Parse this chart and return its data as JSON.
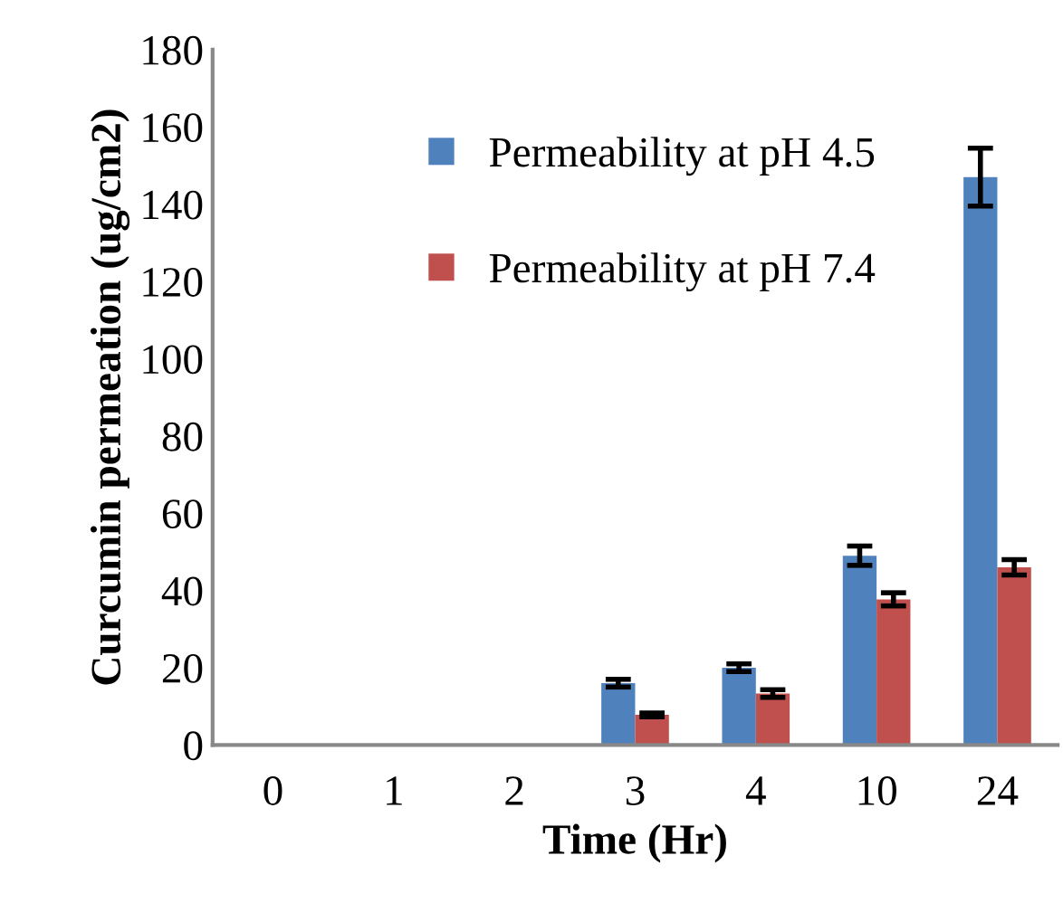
{
  "chart_data": {
    "type": "bar",
    "xlabel": "Time (Hr)",
    "ylabel": "Curcumin permeation (ug/cm2)",
    "categories": [
      "0",
      "1",
      "2",
      "3",
      "4",
      "10",
      "24"
    ],
    "series": [
      {
        "name": "Permeability at pH 4.5",
        "color": "#4f81bd",
        "values": [
          0,
          0,
          0,
          16,
          20,
          49,
          147
        ],
        "errors": [
          null,
          null,
          null,
          1,
          1,
          2.5,
          7.5
        ]
      },
      {
        "name": "Permeability at pH 7.4",
        "color": "#c0504d",
        "values": [
          0,
          0,
          0,
          7.8,
          13.3,
          37.7,
          46
        ],
        "errors": [
          null,
          null,
          null,
          0.5,
          1,
          1.7,
          2
        ]
      }
    ],
    "ylim": [
      0,
      180
    ],
    "yticks": [
      0,
      20,
      40,
      60,
      80,
      100,
      120,
      140,
      160,
      180
    ],
    "grid": false,
    "legend": "top"
  }
}
